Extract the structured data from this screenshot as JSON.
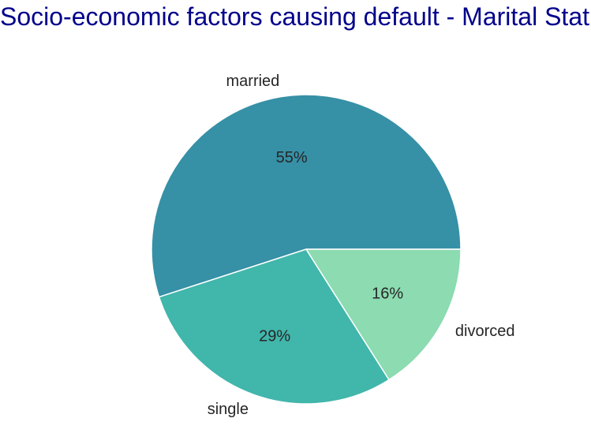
{
  "chart_data": {
    "type": "pie",
    "title": "Socio-economic factors causing default - Marital Status",
    "title_color": "#00008b",
    "categories": [
      "married",
      "single",
      "divorced"
    ],
    "values": [
      55,
      29,
      16
    ],
    "percent_labels": [
      "55%",
      "29%",
      "16%"
    ],
    "colors": [
      "#3690a6",
      "#41b6ab",
      "#8cdbb1"
    ],
    "start_angle_deg": 0,
    "direction": "counterclockwise",
    "legend": "none",
    "label_color": "#262626"
  }
}
